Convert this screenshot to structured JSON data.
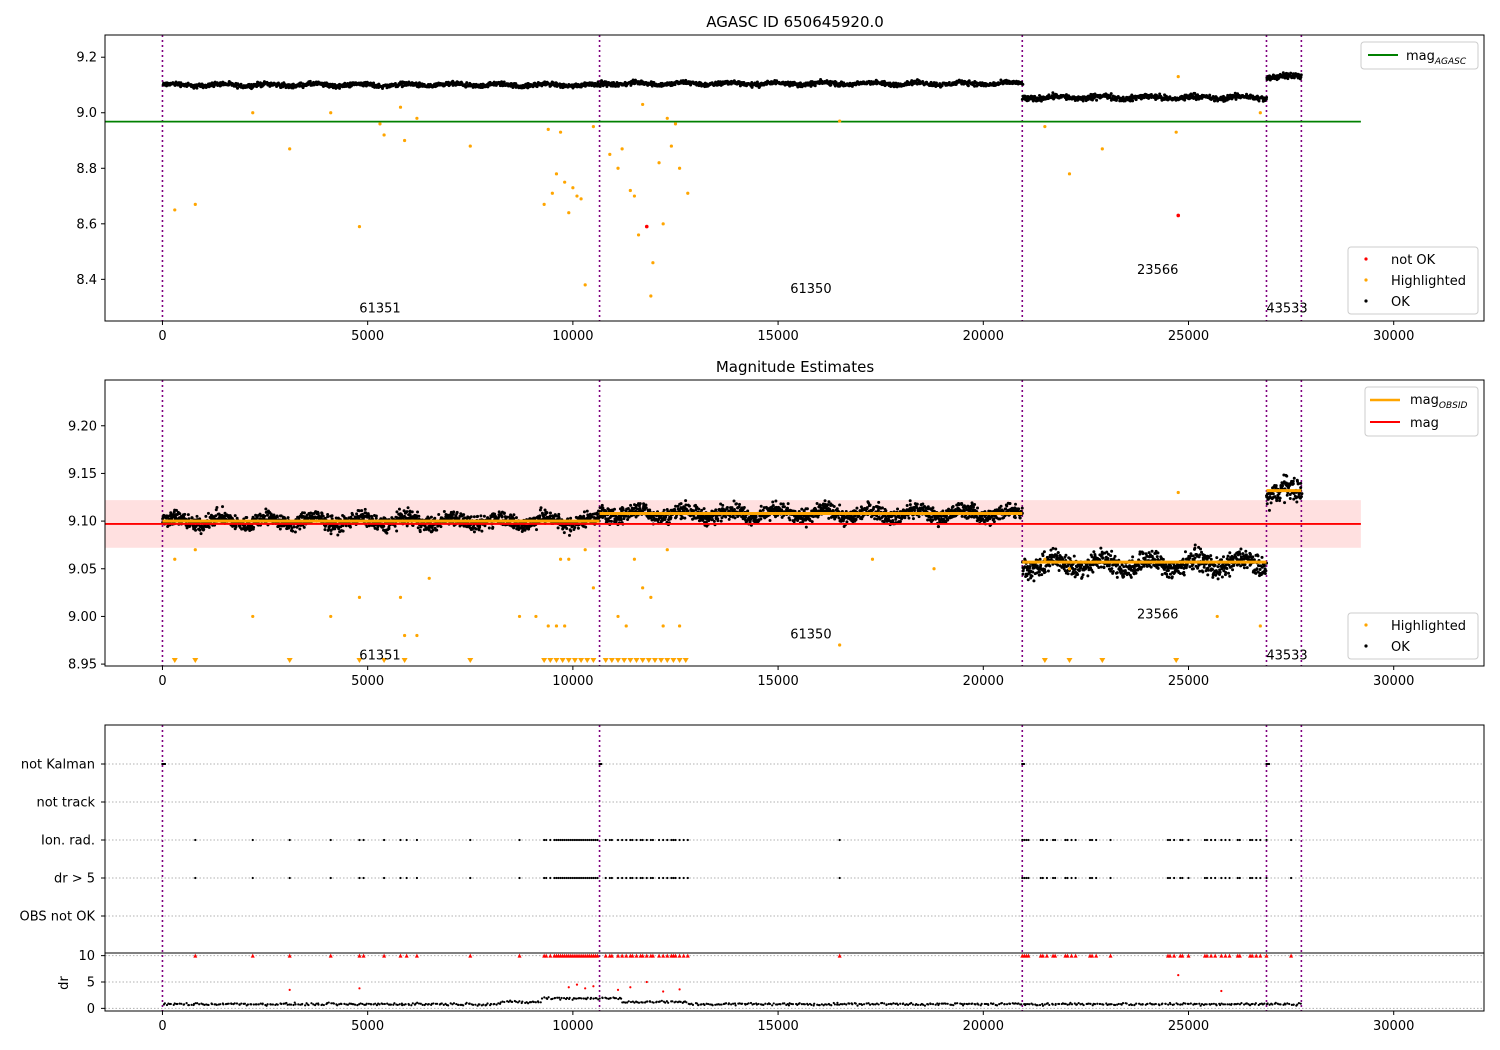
{
  "chart_data": [
    {
      "type": "scatter",
      "title": "AGASC ID 650645920.0",
      "xlim": [
        -1400,
        32200
      ],
      "ylim": [
        8.25,
        9.28
      ],
      "xticks": [
        0,
        5000,
        10000,
        15000,
        20000,
        25000,
        30000
      ],
      "yticks": [
        8.4,
        8.6,
        8.8,
        9.0,
        9.2
      ],
      "ytick_labels": [
        "8.4",
        "8.6",
        "8.8",
        "9.0",
        "9.2"
      ],
      "obs_boundaries": [
        0,
        10650,
        20950,
        26900,
        27750
      ],
      "obs_labels": [
        {
          "text": "61351",
          "x": 5300,
          "y": 8.28
        },
        {
          "text": "61350",
          "x": 15800,
          "y": 8.35
        },
        {
          "text": "23566",
          "x": 24250,
          "y": 8.42
        },
        {
          "text": "43533",
          "x": 27400,
          "y": 8.28
        }
      ],
      "mag_agasc": 8.968,
      "mag_agasc_xrange": [
        -1400,
        29200
      ],
      "legend_top": {
        "labels": [
          "mag_AGASC"
        ],
        "colors": [
          "#008000"
        ],
        "placement": "top-right"
      },
      "legend_bottom": {
        "labels": [
          "not OK",
          "Highlighted",
          "OK"
        ],
        "colors": [
          "#ff0000",
          "#ffa500",
          "#000000"
        ],
        "placement": "lower-right"
      },
      "ok_band_segments": [
        {
          "x": [
            0,
            10650
          ],
          "center": 9.1,
          "spread": 0.012
        },
        {
          "x": [
            10650,
            20950
          ],
          "center": 9.105,
          "spread": 0.012
        },
        {
          "x": [
            20950,
            26900
          ],
          "center": 9.055,
          "spread": 0.015
        },
        {
          "x": [
            26900,
            27750
          ],
          "center": 9.13,
          "spread": 0.018
        }
      ],
      "highlighted_points": [
        [
          300,
          8.65
        ],
        [
          800,
          8.67
        ],
        [
          2200,
          9.0
        ],
        [
          3100,
          8.87
        ],
        [
          4100,
          9.0
        ],
        [
          4800,
          8.59
        ],
        [
          5300,
          8.96
        ],
        [
          5400,
          8.92
        ],
        [
          5800,
          9.02
        ],
        [
          5900,
          8.9
        ],
        [
          6200,
          8.98
        ],
        [
          7500,
          8.88
        ],
        [
          9300,
          8.67
        ],
        [
          9400,
          8.94
        ],
        [
          9500,
          8.71
        ],
        [
          9600,
          8.78
        ],
        [
          9700,
          8.93
        ],
        [
          9800,
          8.75
        ],
        [
          9900,
          8.64
        ],
        [
          10000,
          8.73
        ],
        [
          10100,
          8.7
        ],
        [
          10200,
          8.69
        ],
        [
          10300,
          8.38
        ],
        [
          10500,
          8.95
        ],
        [
          10900,
          8.85
        ],
        [
          11100,
          8.8
        ],
        [
          11200,
          8.87
        ],
        [
          11400,
          8.72
        ],
        [
          11500,
          8.7
        ],
        [
          11600,
          8.56
        ],
        [
          11700,
          9.03
        ],
        [
          11900,
          8.34
        ],
        [
          11950,
          8.46
        ],
        [
          12100,
          8.82
        ],
        [
          12200,
          8.6
        ],
        [
          12300,
          8.98
        ],
        [
          12400,
          8.88
        ],
        [
          12500,
          8.96
        ],
        [
          12600,
          8.8
        ],
        [
          12800,
          8.71
        ],
        [
          16500,
          8.97
        ],
        [
          21500,
          8.95
        ],
        [
          22100,
          8.78
        ],
        [
          22900,
          8.87
        ],
        [
          24700,
          8.93
        ],
        [
          24750,
          9.13
        ],
        [
          26750,
          9.0
        ]
      ],
      "not_ok_points": [
        [
          11800,
          8.59
        ],
        [
          24750,
          8.63
        ]
      ]
    },
    {
      "type": "scatter",
      "title": "Magnitude Estimates",
      "xlim": [
        -1400,
        32200
      ],
      "ylim": [
        8.948,
        9.248
      ],
      "xticks": [
        0,
        5000,
        10000,
        15000,
        20000,
        25000,
        30000
      ],
      "yticks": [
        8.95,
        9.0,
        9.05,
        9.1,
        9.15,
        9.2
      ],
      "ytick_labels": [
        "8.95",
        "9.00",
        "9.05",
        "9.10",
        "9.15",
        "9.20"
      ],
      "obs_boundaries": [
        0,
        10650,
        20950,
        26900,
        27750
      ],
      "obs_labels": [
        {
          "text": "61351",
          "x": 5300,
          "y": 8.955
        },
        {
          "text": "61350",
          "x": 15800,
          "y": 8.977
        },
        {
          "text": "23566",
          "x": 24250,
          "y": 8.998
        },
        {
          "text": "43533",
          "x": 27400,
          "y": 8.955
        }
      ],
      "mag": 9.097,
      "mag_xrange": [
        -1400,
        29200
      ],
      "mag_band": [
        9.072,
        9.122
      ],
      "mag_obsid_segments": [
        {
          "x": [
            0,
            10650
          ],
          "value": 9.1
        },
        {
          "x": [
            10650,
            20950
          ],
          "value": 9.108
        },
        {
          "x": [
            20950,
            26900
          ],
          "value": 9.057
        },
        {
          "x": [
            26900,
            27750
          ],
          "value": 9.132
        }
      ],
      "legend_top": {
        "labels": [
          "mag_OBSID",
          "mag"
        ],
        "colors": [
          "#ffa500",
          "#ff0000"
        ],
        "placement": "top-right"
      },
      "legend_bottom": {
        "labels": [
          "Highlighted",
          "OK"
        ],
        "colors": [
          "#ffa500",
          "#000000"
        ],
        "placement": "lower-right"
      },
      "ok_band_segments": [
        {
          "x": [
            0,
            10650
          ],
          "center": 9.1,
          "spread": 0.012
        },
        {
          "x": [
            10650,
            20950
          ],
          "center": 9.108,
          "spread": 0.012
        },
        {
          "x": [
            20950,
            26900
          ],
          "center": 9.055,
          "spread": 0.016
        },
        {
          "x": [
            26900,
            27750
          ],
          "center": 9.13,
          "spread": 0.018
        }
      ],
      "highlighted_points": [
        [
          300,
          9.06
        ],
        [
          800,
          9.07
        ],
        [
          2200,
          9.0
        ],
        [
          4100,
          9.0
        ],
        [
          4800,
          9.02
        ],
        [
          5800,
          9.02
        ],
        [
          5900,
          8.98
        ],
        [
          6200,
          8.98
        ],
        [
          6500,
          9.04
        ],
        [
          8700,
          9.0
        ],
        [
          9100,
          9.0
        ],
        [
          9400,
          8.99
        ],
        [
          9600,
          8.99
        ],
        [
          9800,
          8.99
        ],
        [
          9700,
          9.06
        ],
        [
          9900,
          9.06
        ],
        [
          10300,
          9.07
        ],
        [
          10500,
          9.03
        ],
        [
          11100,
          9.0
        ],
        [
          11300,
          8.99
        ],
        [
          11500,
          9.06
        ],
        [
          11700,
          9.03
        ],
        [
          11900,
          9.02
        ],
        [
          12200,
          8.99
        ],
        [
          12300,
          9.07
        ],
        [
          12600,
          8.99
        ],
        [
          16500,
          8.97
        ],
        [
          21500,
          9.06
        ],
        [
          22100,
          9.05
        ],
        [
          24750,
          9.13
        ],
        [
          25700,
          9.0
        ],
        [
          26750,
          8.99
        ],
        [
          17300,
          9.06
        ],
        [
          18800,
          9.05
        ]
      ],
      "lower_limit_markers_x": [
        300,
        800,
        3100,
        4800,
        5400,
        5900,
        7500,
        9300,
        9450,
        9600,
        9750,
        9900,
        10050,
        10200,
        10350,
        10500,
        10800,
        10950,
        11100,
        11250,
        11400,
        11550,
        11700,
        11850,
        12000,
        12150,
        12300,
        12450,
        12600,
        12750,
        21500,
        22100,
        22900,
        24700
      ]
    },
    {
      "type": "scatter",
      "title": "",
      "xlim": [
        -1400,
        32200
      ],
      "xticks": [
        0,
        5000,
        10000,
        15000,
        20000,
        25000,
        30000
      ],
      "obs_boundaries": [
        0,
        10650,
        20950,
        26900,
        27750
      ],
      "flag_rows": [
        "not Kalman",
        "not track",
        "Ion. rad.",
        "dr > 5",
        "OBS not OK"
      ],
      "not_kalman_x": [
        0,
        20,
        40,
        60,
        10650,
        10670,
        10690,
        20950,
        20970,
        20990,
        26900,
        26920,
        26940,
        26960
      ],
      "ion_rad_x": [
        800,
        2200,
        3100,
        4100,
        4800,
        4900,
        5400,
        5800,
        5950,
        6200,
        7500,
        8700,
        9300,
        9350,
        9450,
        9550,
        9600,
        9650,
        9700,
        9750,
        9800,
        9850,
        9900,
        9950,
        10000,
        10050,
        10100,
        10150,
        10200,
        10250,
        10300,
        10350,
        10400,
        10450,
        10500,
        10550,
        10600,
        10800,
        10900,
        10950,
        11100,
        11200,
        11300,
        11400,
        11450,
        11550,
        11650,
        11700,
        11800,
        11900,
        11950,
        12100,
        12200,
        12300,
        12400,
        12450,
        12500,
        12600,
        12700,
        12800,
        16500,
        20950,
        21000,
        21050,
        21100,
        21400,
        21450,
        21550,
        21700,
        21750,
        22000,
        22050,
        22150,
        22250,
        22600,
        22650,
        22750,
        23100,
        24500,
        24550,
        24650,
        24800,
        24850,
        25000,
        25400,
        25450,
        25550,
        25650,
        25800,
        25900,
        26000,
        26200,
        26250,
        26500,
        26550,
        26650,
        26750,
        26900,
        27500
      ],
      "dr_ylim": [
        -0.5,
        10.5
      ],
      "dr_yticks": [
        0,
        5,
        10
      ],
      "dr_ytick_labels": [
        "0",
        "5",
        "10"
      ],
      "ylabel_dr": "dr"
    }
  ],
  "figure": {
    "agasc_title": "AGASC ID 650645920.0",
    "mag_title": "Magnitude Estimates",
    "dr_label": "dr",
    "legend_p1_mag": "mag",
    "legend_p1_sub": "AGASC",
    "legend_p2_mag": "mag",
    "legend_p2_sub": "OBSID",
    "legend_p2_mag2": "mag",
    "legend_notok": "not OK",
    "legend_highlighted": "Highlighted",
    "legend_ok": "OK",
    "legend_highlighted2": "Highlighted",
    "legend_ok2": "OK"
  }
}
